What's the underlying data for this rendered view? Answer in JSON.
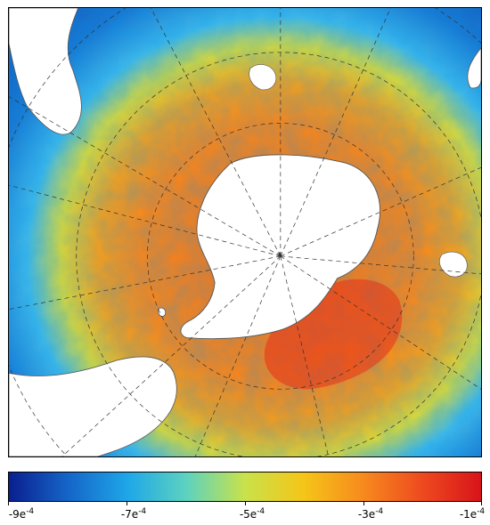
{
  "map": {
    "projection": "south-polar-stereographic",
    "field": "sea-surface-field",
    "land_color": "#ffffff",
    "coast_color": "#555555",
    "graticule_style": "dashed"
  },
  "colorbar": {
    "min": -0.0009,
    "max": -0.0001,
    "colors": [
      "#0a1f8f",
      "#1565c8",
      "#1ea6e8",
      "#5cd2c0",
      "#c9e24a",
      "#f5c518",
      "#f78a1e",
      "#ee4a1f",
      "#d8141a"
    ],
    "labels": [
      {
        "mantissa": "-9e",
        "exp": "-4"
      },
      {
        "mantissa": "-7e",
        "exp": "-4"
      },
      {
        "mantissa": "-5e",
        "exp": "-4"
      },
      {
        "mantissa": "-3e",
        "exp": "-4"
      },
      {
        "mantissa": "-1e",
        "exp": "-4"
      }
    ]
  }
}
